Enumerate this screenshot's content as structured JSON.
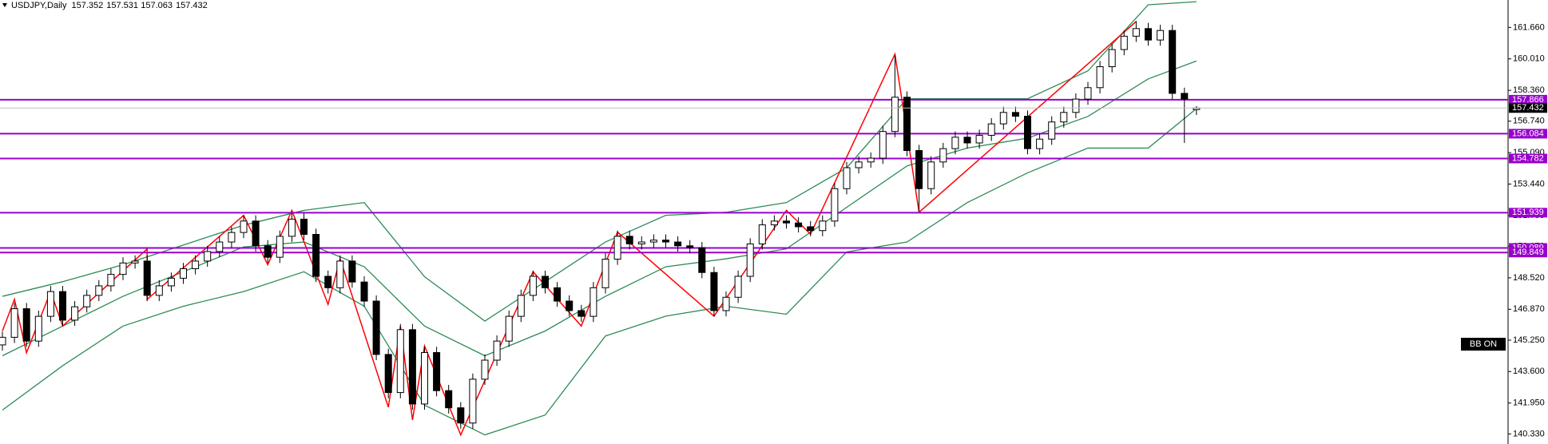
{
  "chart_data": {
    "type": "candlestick",
    "title": "USDJPY,Daily",
    "open": [
      145.0,
      145.4,
      146.9,
      145.2,
      146.5,
      147.8,
      146.3,
      147.0,
      147.6,
      148.1,
      148.7,
      149.3,
      149.4,
      147.6,
      148.1,
      148.5,
      149.0,
      149.4,
      149.9,
      150.4,
      150.9,
      151.5,
      150.2,
      149.6,
      150.7,
      151.6,
      150.8,
      148.6,
      148.0,
      149.4,
      148.3,
      147.3,
      144.5,
      142.5,
      145.8,
      141.9,
      144.6,
      142.6,
      141.7,
      140.9,
      143.2,
      144.2,
      145.2,
      146.5,
      147.6,
      148.6,
      148.0,
      147.3,
      146.8,
      146.5,
      148.0,
      149.5,
      150.7,
      150.3,
      150.4,
      150.5,
      150.4,
      150.2,
      150.1,
      148.8,
      146.8,
      147.5,
      148.6,
      150.3,
      151.3,
      151.5,
      151.4,
      151.2,
      151.0,
      151.5,
      153.2,
      154.3,
      154.6,
      154.8,
      156.2,
      158.0,
      155.2,
      153.2,
      154.6,
      155.3,
      155.9,
      155.6,
      156.0,
      156.6,
      157.2,
      157.0,
      155.3,
      155.8,
      156.7,
      157.2,
      157.9,
      158.5,
      159.6,
      160.5,
      161.2,
      161.6,
      161.0,
      161.5,
      158.2,
      157.352
    ],
    "high": [
      145.7,
      147.2,
      147.2,
      146.8,
      148.1,
      148.1,
      147.3,
      147.9,
      148.4,
      149.0,
      149.6,
      149.7,
      149.7,
      148.4,
      148.8,
      149.3,
      149.7,
      150.2,
      150.7,
      151.2,
      151.8,
      151.8,
      150.5,
      151.0,
      151.9,
      151.9,
      151.1,
      148.9,
      149.7,
      149.7,
      148.6,
      147.6,
      144.8,
      146.1,
      146.1,
      144.9,
      144.9,
      142.9,
      142.0,
      143.5,
      144.5,
      145.5,
      146.8,
      147.9,
      148.9,
      148.9,
      148.3,
      147.6,
      147.1,
      148.3,
      149.8,
      151.0,
      151.0,
      150.7,
      150.8,
      150.8,
      150.7,
      150.5,
      150.4,
      149.1,
      147.8,
      148.9,
      150.6,
      151.6,
      151.8,
      151.8,
      151.7,
      151.5,
      151.8,
      153.5,
      154.6,
      154.9,
      155.1,
      156.5,
      160.2,
      158.3,
      155.5,
      154.9,
      155.6,
      156.2,
      156.2,
      156.3,
      156.9,
      157.5,
      157.5,
      157.3,
      156.1,
      157.0,
      157.5,
      158.2,
      158.8,
      159.9,
      160.8,
      161.5,
      162.0,
      161.9,
      161.8,
      161.8,
      158.5,
      157.531
    ],
    "low": [
      144.7,
      145.1,
      144.9,
      144.9,
      146.2,
      146.0,
      146.0,
      146.7,
      147.3,
      147.8,
      148.4,
      149.0,
      147.3,
      147.3,
      147.8,
      148.2,
      148.7,
      149.1,
      149.6,
      150.1,
      150.6,
      149.9,
      149.3,
      149.3,
      150.4,
      150.5,
      148.3,
      147.7,
      147.7,
      148.0,
      147.0,
      144.2,
      142.2,
      142.2,
      141.6,
      141.6,
      142.3,
      141.4,
      140.6,
      140.6,
      142.9,
      143.9,
      144.9,
      146.2,
      147.3,
      147.7,
      147.0,
      146.5,
      146.2,
      146.2,
      147.7,
      149.2,
      150.0,
      150.0,
      150.1,
      150.1,
      149.9,
      149.8,
      148.5,
      146.5,
      146.5,
      147.2,
      148.3,
      150.0,
      151.0,
      151.1,
      150.9,
      150.7,
      150.7,
      151.2,
      152.9,
      154.0,
      154.3,
      154.5,
      155.9,
      154.9,
      152.0,
      152.9,
      154.3,
      155.0,
      155.3,
      155.3,
      155.7,
      156.3,
      156.7,
      155.0,
      155.0,
      155.5,
      156.4,
      156.9,
      157.6,
      158.2,
      159.3,
      160.2,
      160.9,
      160.7,
      160.7,
      157.9,
      155.6,
      157.063
    ],
    "close": [
      145.4,
      146.9,
      145.2,
      146.5,
      147.8,
      146.3,
      147.0,
      147.6,
      148.1,
      148.7,
      149.3,
      149.4,
      147.6,
      148.1,
      148.5,
      149.0,
      149.4,
      149.9,
      150.4,
      150.9,
      151.5,
      150.2,
      149.6,
      150.7,
      151.6,
      150.8,
      148.6,
      148.0,
      149.4,
      148.3,
      147.3,
      144.5,
      142.5,
      145.8,
      141.9,
      144.6,
      142.6,
      141.7,
      140.9,
      143.2,
      144.2,
      145.2,
      146.5,
      147.6,
      148.6,
      148.0,
      147.3,
      146.8,
      146.5,
      148.0,
      149.5,
      150.7,
      150.3,
      150.4,
      150.5,
      150.4,
      150.2,
      150.1,
      148.8,
      146.8,
      147.5,
      148.6,
      150.3,
      151.3,
      151.5,
      151.4,
      151.2,
      151.0,
      151.5,
      153.2,
      154.3,
      154.6,
      154.8,
      156.2,
      158.0,
      155.2,
      153.2,
      154.6,
      155.3,
      155.9,
      155.6,
      156.0,
      156.6,
      157.2,
      157.0,
      155.3,
      155.8,
      156.7,
      157.2,
      157.9,
      158.5,
      159.6,
      160.5,
      161.2,
      161.6,
      161.0,
      161.5,
      158.2,
      157.9,
      157.432
    ],
    "ylim": [
      139.8,
      163.1
    ],
    "yticks": [
      {
        "value": 161.66,
        "label": "161.660"
      },
      {
        "value": 160.01,
        "label": "160.010"
      },
      {
        "value": 158.36,
        "label": "158.360"
      },
      {
        "value": 156.74,
        "label": "156.740"
      },
      {
        "value": 155.09,
        "label": "155.090"
      },
      {
        "value": 153.44,
        "label": "153.440"
      },
      {
        "value": 151.79,
        "label": "151.790"
      },
      {
        "value": 150.17,
        "label": "150.170"
      },
      {
        "value": 148.52,
        "label": "148.520"
      },
      {
        "value": 146.87,
        "label": "146.870"
      },
      {
        "value": 145.25,
        "label": "145.250"
      },
      {
        "value": 143.6,
        "label": "143.600"
      },
      {
        "value": 141.95,
        "label": "141.950"
      },
      {
        "value": 140.33,
        "label": "140.330"
      }
    ],
    "bollinger": {
      "color": "#2e8b57",
      "x": [
        0,
        5,
        10,
        15,
        20,
        25,
        30,
        35,
        40,
        45,
        50,
        55,
        60,
        65,
        70,
        75,
        80,
        85,
        90,
        95,
        99
      ],
      "upper": [
        147.55,
        148.32,
        149.21,
        150.24,
        151.28,
        152.06,
        152.47,
        148.58,
        146.25,
        148.32,
        150.4,
        151.8,
        151.96,
        152.47,
        154.29,
        157.92,
        157.92,
        157.92,
        159.38,
        162.85,
        163.01
      ],
      "middle": [
        144.43,
        145.99,
        147.55,
        148.84,
        150.14,
        150.4,
        149.1,
        145.99,
        144.43,
        145.73,
        147.55,
        149.1,
        149.52,
        150.04,
        152.22,
        154.39,
        155.33,
        155.85,
        156.99,
        158.96,
        159.9
      ],
      "lower": [
        141.58,
        143.91,
        145.99,
        147.03,
        147.8,
        148.84,
        147.03,
        141.84,
        140.28,
        141.32,
        145.47,
        146.51,
        147.03,
        146.61,
        149.88,
        150.4,
        152.47,
        154.03,
        155.33,
        155.33,
        157.4
      ]
    },
    "zigzag": {
      "color": "#ff0000",
      "x": [
        0,
        1,
        2,
        4,
        5,
        12,
        12,
        20,
        22,
        24,
        27,
        28,
        32,
        33,
        34,
        35,
        38,
        44,
        48,
        51,
        59,
        65,
        67,
        74,
        76,
        94
      ],
      "values": [
        145.73,
        147.39,
        144.59,
        147.8,
        145.99,
        150.04,
        147.39,
        151.8,
        149.21,
        152.06,
        147.13,
        149.52,
        141.73,
        145.99,
        141.06,
        144.95,
        140.28,
        148.84,
        145.99,
        150.92,
        146.51,
        152.06,
        150.81,
        160.26,
        151.96,
        161.97
      ]
    },
    "levels": {
      "color": "#9900cc",
      "values": [
        157.866,
        156.084,
        154.782,
        151.939,
        150.089,
        149.849
      ]
    },
    "button": "BB ON"
  }
}
